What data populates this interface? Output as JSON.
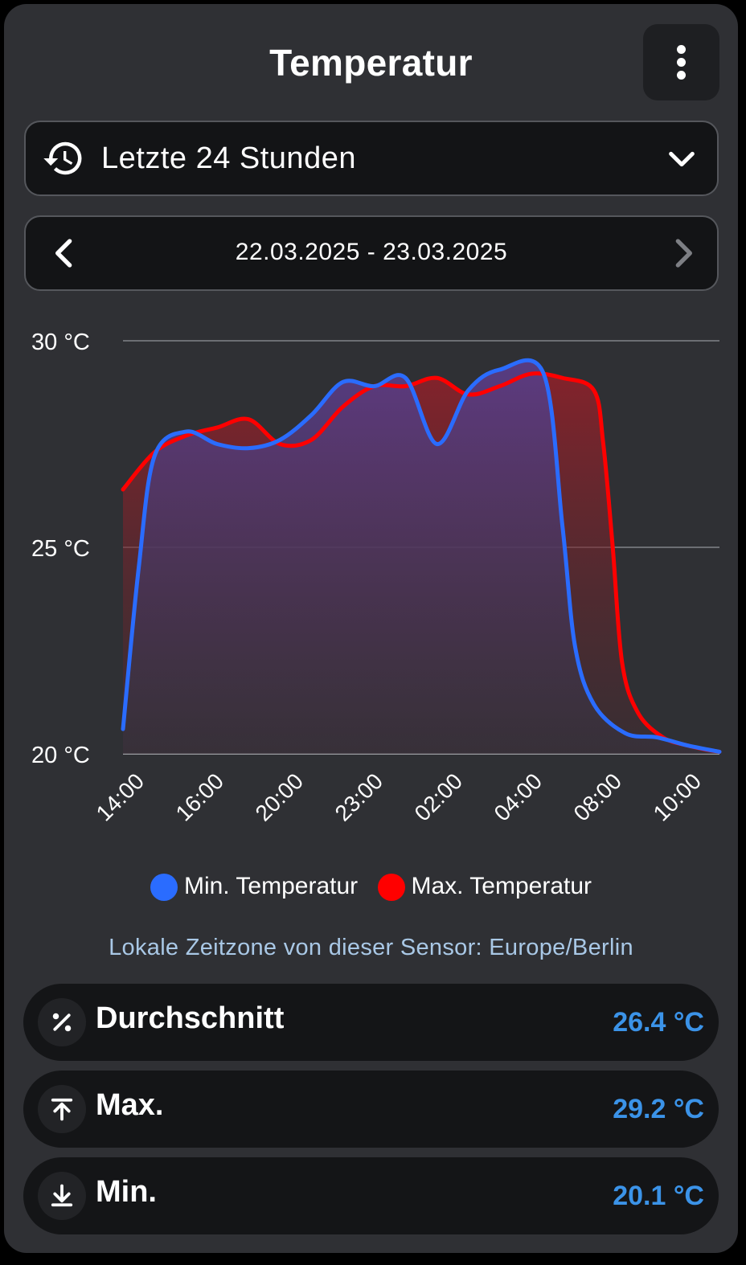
{
  "header": {
    "title": "Temperatur",
    "menu_icon": "more-vertical-icon"
  },
  "range_select": {
    "value": "Letzte 24 Stunden",
    "icon": "history-icon",
    "chevron": "chevron-down-icon"
  },
  "date_nav": {
    "label": "22.03.2025 - 23.03.2025",
    "prev_icon": "chevron-left-icon",
    "next_icon": "chevron-right-icon"
  },
  "chart_data": {
    "type": "area",
    "ylim": [
      20,
      30
    ],
    "y_ticks": [
      "30 °C",
      "25 °C",
      "20 °C"
    ],
    "y_tick_values": [
      30,
      25,
      20
    ],
    "x_tick_labels": [
      "14:00",
      "16:00",
      "20:00",
      "23:00",
      "02:00",
      "04:00",
      "08:00",
      "10:00"
    ],
    "grid": true,
    "legend_position": "bottom",
    "series": [
      {
        "name": "Max. Temperatur",
        "color": "#ff0000",
        "points": [
          [
            0,
            26.4
          ],
          [
            0.5,
            27.3
          ],
          [
            1,
            27.7
          ],
          [
            1.5,
            27.9
          ],
          [
            2,
            28.1
          ],
          [
            2.5,
            27.5
          ],
          [
            3,
            27.6
          ],
          [
            3.5,
            28.4
          ],
          [
            4,
            28.9
          ],
          [
            4.5,
            28.9
          ],
          [
            5,
            29.1
          ],
          [
            5.5,
            28.7
          ],
          [
            6,
            28.9
          ],
          [
            6.5,
            29.2
          ],
          [
            7,
            29.1
          ],
          [
            7.5,
            28.8
          ],
          [
            7.65,
            27.5
          ],
          [
            7.8,
            25.0
          ],
          [
            7.95,
            22.2
          ],
          [
            8.2,
            21.0
          ],
          [
            8.6,
            20.4
          ],
          [
            9,
            20.2
          ],
          [
            9.3,
            20.1
          ],
          [
            9.5,
            20.05
          ]
        ]
      },
      {
        "name": "Min. Temperatur",
        "color": "#2a6cff",
        "points": [
          [
            0,
            20.6
          ],
          [
            0.25,
            24.5
          ],
          [
            0.5,
            27.2
          ],
          [
            1,
            27.8
          ],
          [
            1.5,
            27.5
          ],
          [
            2,
            27.4
          ],
          [
            2.5,
            27.6
          ],
          [
            3,
            28.2
          ],
          [
            3.5,
            29.0
          ],
          [
            4,
            28.9
          ],
          [
            4.5,
            29.1
          ],
          [
            5,
            27.5
          ],
          [
            5.5,
            28.8
          ],
          [
            6,
            29.3
          ],
          [
            6.7,
            29.2
          ],
          [
            7.0,
            25.5
          ],
          [
            7.2,
            22.6
          ],
          [
            7.5,
            21.2
          ],
          [
            8,
            20.5
          ],
          [
            8.5,
            20.4
          ],
          [
            9,
            20.2
          ],
          [
            9.5,
            20.05
          ]
        ]
      }
    ]
  },
  "legend": {
    "min_label": "Min. Temperatur",
    "max_label": "Max. Temperatur",
    "min_color": "#2a6cff",
    "max_color": "#ff0000"
  },
  "timezone_note": "Lokale Zeitzone von dieser Sensor: Europe/Berlin",
  "stats": [
    {
      "label": "Durchschnitt",
      "value": "26.4 °C",
      "icon": "average-icon"
    },
    {
      "label": "Max.",
      "value": "29.2 °C",
      "icon": "arrow-collapse-up-icon"
    },
    {
      "label": "Min.",
      "value": "20.1 °C",
      "icon": "arrow-collapse-down-icon"
    }
  ]
}
